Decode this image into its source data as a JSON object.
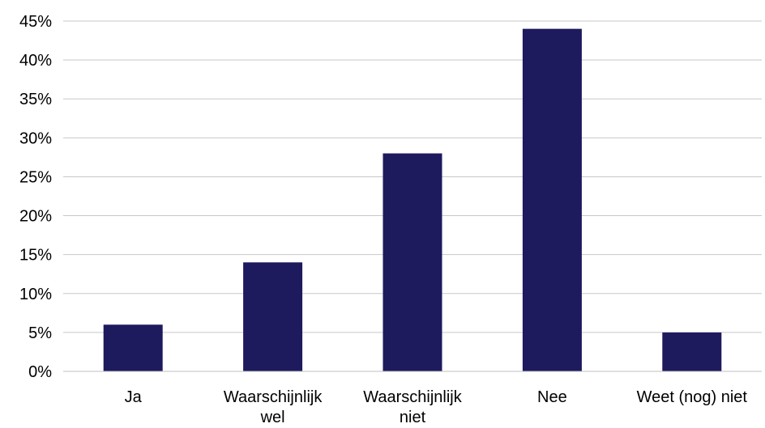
{
  "chart_data": {
    "type": "bar",
    "categories": [
      [
        "Ja"
      ],
      [
        "Waarschijnlijk",
        "wel"
      ],
      [
        "Waarschijnlijk",
        "niet"
      ],
      [
        "Nee"
      ],
      [
        "Weet (nog) niet"
      ]
    ],
    "values": [
      6,
      14,
      28,
      44,
      5
    ],
    "unit": "%",
    "ylim": [
      0,
      45
    ],
    "yticks": [
      0,
      5,
      10,
      15,
      20,
      25,
      30,
      35,
      40,
      45
    ],
    "ytick_labels": [
      "0%",
      "5%",
      "10%",
      "15%",
      "20%",
      "25%",
      "30%",
      "35%",
      "40%",
      "45%"
    ],
    "grid": true,
    "legend": "none",
    "bar_color": "#1e1a5e",
    "grid_color": "#c8c8c8"
  }
}
